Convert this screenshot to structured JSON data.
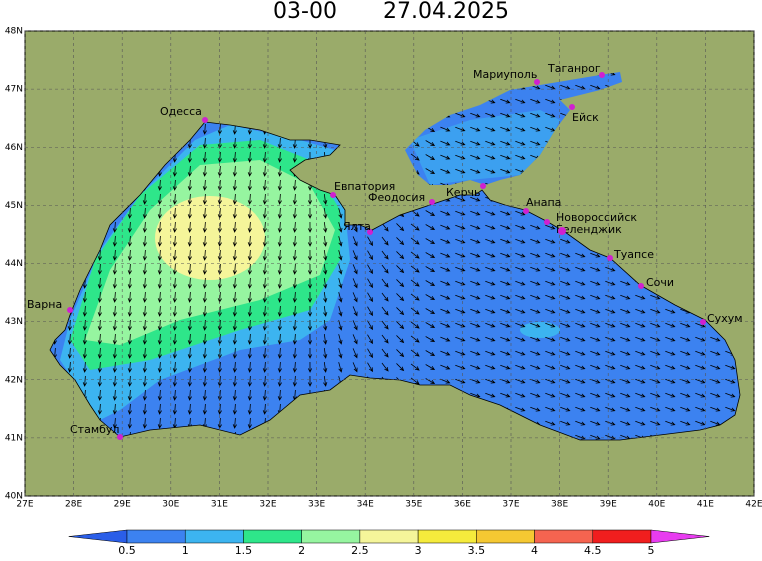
{
  "header": {
    "time": "03-00",
    "date": "27.04.2025"
  },
  "map": {
    "xticks": [
      {
        "value": 27,
        "label": "27E"
      },
      {
        "value": 28,
        "label": "28E"
      },
      {
        "value": 29,
        "label": "29E"
      },
      {
        "value": 30,
        "label": "30E"
      },
      {
        "value": 31,
        "label": "31E"
      },
      {
        "value": 32,
        "label": "32E"
      },
      {
        "value": 33,
        "label": "33E"
      },
      {
        "value": 34,
        "label": "34E"
      },
      {
        "value": 35,
        "label": "35E"
      },
      {
        "value": 36,
        "label": "36E"
      },
      {
        "value": 37,
        "label": "37E"
      },
      {
        "value": 38,
        "label": "38E"
      },
      {
        "value": 39,
        "label": "39E"
      },
      {
        "value": 40,
        "label": "40E"
      },
      {
        "value": 41,
        "label": "41E"
      },
      {
        "value": 42,
        "label": "42E"
      }
    ],
    "yticks": [
      {
        "value": 40,
        "label": "40N"
      },
      {
        "value": 41,
        "label": "41N"
      },
      {
        "value": 42,
        "label": "42N"
      },
      {
        "value": 43,
        "label": "43N"
      },
      {
        "value": 44,
        "label": "44N"
      },
      {
        "value": 45,
        "label": "45N"
      },
      {
        "value": 46,
        "label": "46N"
      },
      {
        "value": 47,
        "label": "47N"
      },
      {
        "value": 48,
        "label": "48N"
      }
    ],
    "cities": [
      "Одесса",
      "Мариуполь",
      "Таганрог",
      "Ейск",
      "Евпатория",
      "Феодосия",
      "Керчь",
      "Анапа",
      "Новороссийск",
      "Геленджик",
      "Ялта",
      "Туапсе",
      "Сочи",
      "Сухум",
      "Варна",
      "Стамбул"
    ]
  },
  "legend": {
    "levels": [
      0.5,
      1,
      1.5,
      2,
      2.5,
      3,
      3.5,
      4,
      4.5,
      5
    ],
    "colors": [
      "#2a5ee8",
      "#3c82f0",
      "#3cb4f0",
      "#2ee68a",
      "#96f5a0",
      "#f5f59a",
      "#f5eb3c",
      "#f5c832",
      "#f56450",
      "#f01e1e",
      "#e83cf0"
    ]
  }
}
